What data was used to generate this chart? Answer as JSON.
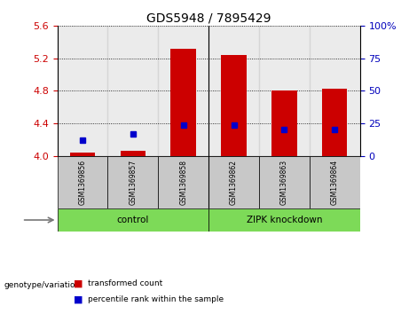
{
  "title": "GDS5948 / 7895429",
  "samples": [
    "GSM1369856",
    "GSM1369857",
    "GSM1369858",
    "GSM1369862",
    "GSM1369863",
    "GSM1369864"
  ],
  "bar_values": [
    4.04,
    4.06,
    5.32,
    5.24,
    4.81,
    4.83
  ],
  "dot_values": [
    4.2,
    4.27,
    4.385,
    4.375,
    4.325,
    4.325
  ],
  "ylim": [
    4.0,
    5.6
  ],
  "y_ticks": [
    4.0,
    4.4,
    4.8,
    5.2,
    5.6
  ],
  "right_ytick_labels": [
    "0",
    "25",
    "50",
    "75",
    "100%"
  ],
  "bar_color": "#cc0000",
  "dot_color": "#0000cc",
  "group_bg_gray": "#c8c8c8",
  "group_bg_green": "#7dda58",
  "left_tick_color": "#cc0000",
  "right_tick_color": "#0000bb",
  "title_color": "#000000",
  "bar_width": 0.5,
  "group1_label": "control",
  "group2_label": "ZIPK knockdown",
  "legend_label1": "transformed count",
  "legend_label2": "percentile rank within the sample",
  "genotype_label": "genotype/variation"
}
